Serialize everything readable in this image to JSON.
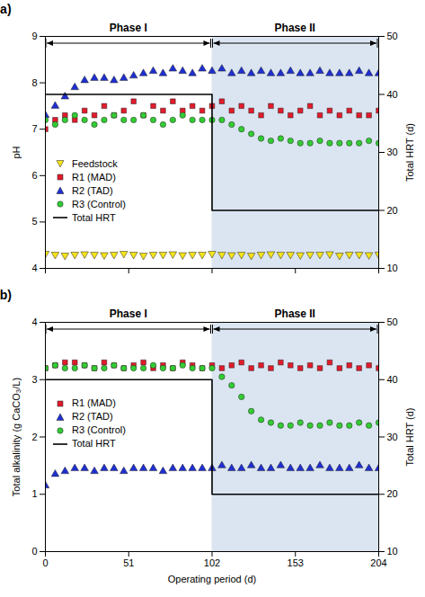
{
  "chart_data": [
    {
      "type": "scatter",
      "title": "(a)",
      "x": [
        0,
        6,
        12,
        18,
        24,
        30,
        36,
        42,
        48,
        54,
        60,
        66,
        72,
        78,
        84,
        90,
        96,
        102,
        108,
        114,
        120,
        126,
        132,
        138,
        144,
        150,
        156,
        162,
        168,
        174,
        180,
        186,
        192,
        198,
        204
      ],
      "xlim": [
        0,
        204
      ],
      "xticks": [
        0,
        51,
        102,
        153,
        204
      ],
      "tick_labels": "y",
      "ylabel": "pH",
      "ylim": [
        4,
        9
      ],
      "yticks": [
        4,
        5,
        6,
        7,
        8,
        9
      ],
      "y2label": "Total HRT (d)",
      "y2lim": [
        10,
        50
      ],
      "y2ticks": [
        10,
        20,
        30,
        40,
        50
      ],
      "legend": "center left",
      "phases": [
        {
          "label": "Phase I",
          "x": [
            0,
            102
          ]
        },
        {
          "label": "Phase II",
          "x": [
            102,
            204
          ],
          "color": "#dbe5f1"
        }
      ],
      "series": [
        {
          "name": "Feedstock",
          "color": "#f5e31b",
          "marker": "triangle-down",
          "values": [
            4.32,
            4.3,
            4.28,
            4.3,
            4.31,
            4.3,
            4.29,
            4.3,
            4.32,
            4.3,
            4.28,
            4.3,
            4.3,
            4.31,
            4.29,
            4.3,
            4.3,
            4.32,
            4.3,
            4.29,
            4.3,
            4.28,
            4.3,
            4.31,
            4.3,
            4.3,
            4.29,
            4.3,
            4.3,
            4.31,
            4.28,
            4.3,
            4.3,
            4.29,
            4.3
          ]
        },
        {
          "name": "R1 (MAD)",
          "color": "#e31a2b",
          "marker": "square",
          "values": [
            7.0,
            7.2,
            7.3,
            7.2,
            7.4,
            7.3,
            7.5,
            7.3,
            7.4,
            7.6,
            7.3,
            7.5,
            7.4,
            7.6,
            7.4,
            7.5,
            7.4,
            7.5,
            7.6,
            7.4,
            7.5,
            7.4,
            7.3,
            7.5,
            7.4,
            7.3,
            7.4,
            7.5,
            7.3,
            7.4,
            7.3,
            7.4,
            7.3,
            7.3,
            7.4
          ]
        },
        {
          "name": "R2 (TAD)",
          "color": "#1f2fd1",
          "marker": "triangle",
          "values": [
            7.3,
            7.5,
            7.7,
            7.9,
            8.05,
            8.1,
            8.1,
            8.05,
            8.1,
            8.15,
            8.2,
            8.25,
            8.2,
            8.3,
            8.25,
            8.2,
            8.3,
            8.25,
            8.3,
            8.2,
            8.25,
            8.2,
            8.25,
            8.2,
            8.2,
            8.25,
            8.2,
            8.2,
            8.25,
            8.2,
            8.2,
            8.2,
            8.25,
            8.2,
            8.2
          ]
        },
        {
          "name": "R3 (Control)",
          "color": "#33cc33",
          "marker": "circle",
          "values": [
            7.2,
            7.1,
            7.2,
            7.3,
            7.2,
            7.1,
            7.2,
            7.3,
            7.2,
            7.2,
            7.3,
            7.2,
            7.1,
            7.2,
            7.3,
            7.2,
            7.2,
            7.2,
            7.2,
            7.1,
            7.0,
            6.9,
            6.8,
            6.75,
            6.8,
            6.75,
            6.7,
            6.7,
            6.75,
            6.7,
            6.7,
            6.7,
            6.7,
            6.75,
            6.7
          ]
        },
        {
          "name": "Total HRT",
          "color": "#000000",
          "type": "line",
          "axis": "y2",
          "x": [
            0,
            102,
            102,
            204
          ],
          "values": [
            40,
            40,
            20,
            20
          ]
        }
      ]
    },
    {
      "type": "scatter",
      "title": "(b)",
      "x": [
        0,
        6,
        12,
        18,
        24,
        30,
        36,
        42,
        48,
        54,
        60,
        66,
        72,
        78,
        84,
        90,
        96,
        102,
        108,
        114,
        120,
        126,
        132,
        138,
        144,
        150,
        156,
        162,
        168,
        174,
        180,
        186,
        192,
        198,
        204
      ],
      "xlabel": "Operating period (d)",
      "xlim": [
        0,
        204
      ],
      "xticks": [
        0,
        51,
        102,
        153,
        204
      ],
      "ylabel": "Total alkalinity (g CaCO₃/L)",
      "ylim": [
        0,
        4
      ],
      "yticks": [
        0,
        1,
        2,
        3,
        4
      ],
      "y2label": "Total HRT (d)",
      "y2lim": [
        10,
        50
      ],
      "y2ticks": [
        10,
        20,
        30,
        40,
        50
      ],
      "legend": "center left",
      "phases": [
        {
          "label": "Phase I",
          "x": [
            0,
            102
          ]
        },
        {
          "label": "Phase II",
          "x": [
            102,
            204
          ],
          "color": "#dbe5f1"
        }
      ],
      "series": [
        {
          "name": "R1 (MAD)",
          "color": "#e31a2b",
          "marker": "square",
          "values": [
            3.2,
            3.25,
            3.3,
            3.3,
            3.25,
            3.2,
            3.3,
            3.25,
            3.2,
            3.25,
            3.3,
            3.2,
            3.25,
            3.2,
            3.3,
            3.25,
            3.2,
            3.25,
            3.2,
            3.25,
            3.3,
            3.2,
            3.25,
            3.2,
            3.3,
            3.25,
            3.2,
            3.25,
            3.2,
            3.3,
            3.2,
            3.25,
            3.2,
            3.25,
            3.2
          ]
        },
        {
          "name": "R2 (TAD)",
          "color": "#1f2fd1",
          "marker": "triangle",
          "values": [
            1.15,
            1.35,
            1.4,
            1.45,
            1.45,
            1.4,
            1.45,
            1.45,
            1.4,
            1.45,
            1.45,
            1.45,
            1.4,
            1.45,
            1.45,
            1.45,
            1.45,
            1.45,
            1.5,
            1.45,
            1.45,
            1.5,
            1.45,
            1.45,
            1.5,
            1.45,
            1.45,
            1.45,
            1.5,
            1.45,
            1.45,
            1.45,
            1.5,
            1.45,
            1.45
          ]
        },
        {
          "name": "R3 (Control)",
          "color": "#33cc33",
          "marker": "circle",
          "values": [
            3.2,
            3.25,
            3.2,
            3.2,
            3.25,
            3.2,
            3.2,
            3.25,
            3.2,
            3.2,
            3.2,
            3.25,
            3.2,
            3.2,
            3.25,
            3.2,
            3.2,
            3.2,
            3.05,
            2.9,
            2.7,
            2.45,
            2.3,
            2.25,
            2.2,
            2.2,
            2.25,
            2.2,
            2.2,
            2.25,
            2.2,
            2.2,
            2.25,
            2.2,
            2.25
          ]
        },
        {
          "name": "Total HRT",
          "color": "#000000",
          "type": "line",
          "axis": "y2",
          "x": [
            0,
            102,
            102,
            204
          ],
          "values": [
            40,
            40,
            20,
            20
          ]
        }
      ]
    }
  ]
}
